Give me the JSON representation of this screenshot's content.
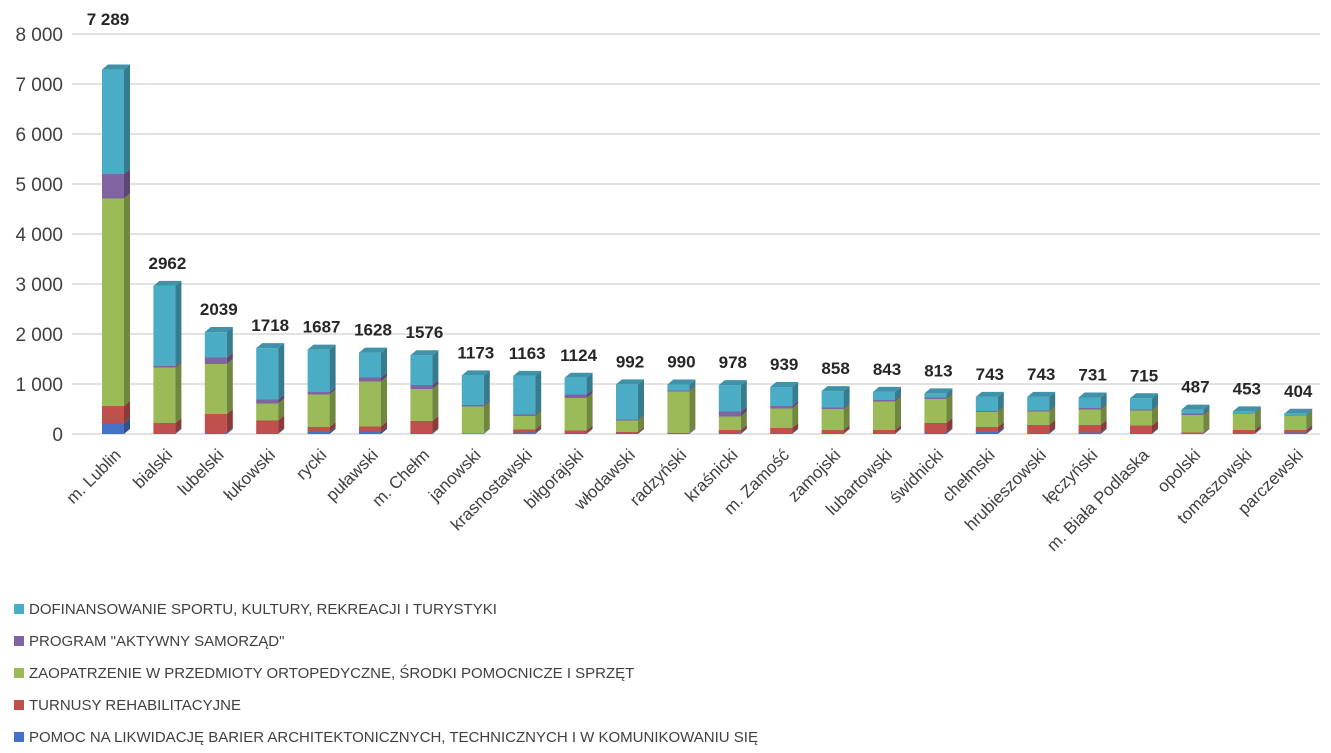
{
  "chart_data": {
    "type": "bar",
    "stacked": true,
    "style": "3d-stacked-column",
    "categories": [
      "m. Lublin",
      "bialski",
      "lubelski",
      "łukowski",
      "rycki",
      "puławski",
      "m. Chełm",
      "janowski",
      "krasnostawski",
      "biłgorajski",
      "włodawski",
      "radzyński",
      "kraśnicki",
      "m. Zamość",
      "zamojski",
      "lubartowski",
      "świdnicki",
      "chełmski",
      "hrubieszowski",
      "łęczyński",
      "m. Biała Podlaska",
      "opolski",
      "tomaszowski",
      "parczewski"
    ],
    "total_labels": [
      "7 289",
      "2962",
      "2039",
      "1718",
      "1687",
      "1628",
      "1576",
      "1173",
      "1163",
      "1124",
      "992",
      "990",
      "978",
      "939",
      "858",
      "843",
      "813",
      "743",
      "743",
      "731",
      "715",
      "487",
      "453",
      "404"
    ],
    "series": [
      {
        "name": "POMOC NA LIKWIDACJĘ BARIER ARCHITEKTONICZNYCH, TECHNICZNYCH I W KOMUNIKOWANIU SIĘ",
        "color": "#4472c4",
        "values": [
          220,
          20,
          20,
          20,
          40,
          50,
          20,
          10,
          30,
          10,
          10,
          10,
          20,
          20,
          20,
          20,
          20,
          40,
          20,
          30,
          20,
          10,
          20,
          30
        ]
      },
      {
        "name": "TURNUSY REHABILITACYJNE",
        "color": "#c0504d",
        "values": [
          340,
          200,
          380,
          250,
          100,
          100,
          240,
          0,
          60,
          60,
          30,
          10,
          60,
          100,
          60,
          60,
          200,
          100,
          160,
          150,
          150,
          20,
          60,
          50
        ]
      },
      {
        "name": "ZAOPATRZENIE W PRZEDMIOTY ORTOPEDYCZNE, ŚRODKI POMOCNICZE I SPRZĘT",
        "color": "#9bbb59",
        "values": [
          4150,
          1110,
          1000,
          340,
          650,
          900,
          640,
          540,
          270,
          650,
          230,
          830,
          270,
          390,
          420,
          570,
          480,
          300,
          270,
          310,
          300,
          350,
          330,
          290
        ]
      },
      {
        "name": "PROGRAM \"AKTYWNY SAMORZĄD\"",
        "color": "#8064a2",
        "values": [
          490,
          30,
          130,
          80,
          50,
          80,
          80,
          30,
          30,
          70,
          20,
          20,
          100,
          50,
          30,
          30,
          30,
          20,
          20,
          30,
          20,
          30,
          10,
          10
        ]
      },
      {
        "name": "DOFINANSOWANIE SPORTU, KULTURY, REKREACJI I TURYSTYKI",
        "color": "#4bacc6",
        "values": [
          2089,
          1602,
          509,
          1028,
          847,
          498,
          596,
          593,
          773,
          334,
          702,
          120,
          528,
          379,
          328,
          163,
          83,
          283,
          273,
          211,
          225,
          77,
          33,
          24
        ]
      }
    ],
    "y_ticks": [
      "0",
      "1 000",
      "2 000",
      "3 000",
      "4 000",
      "5 000",
      "6 000",
      "7 000",
      "8 000"
    ],
    "ylim": [
      0,
      8000
    ],
    "grid": true,
    "legend_position": "bottom-left"
  }
}
